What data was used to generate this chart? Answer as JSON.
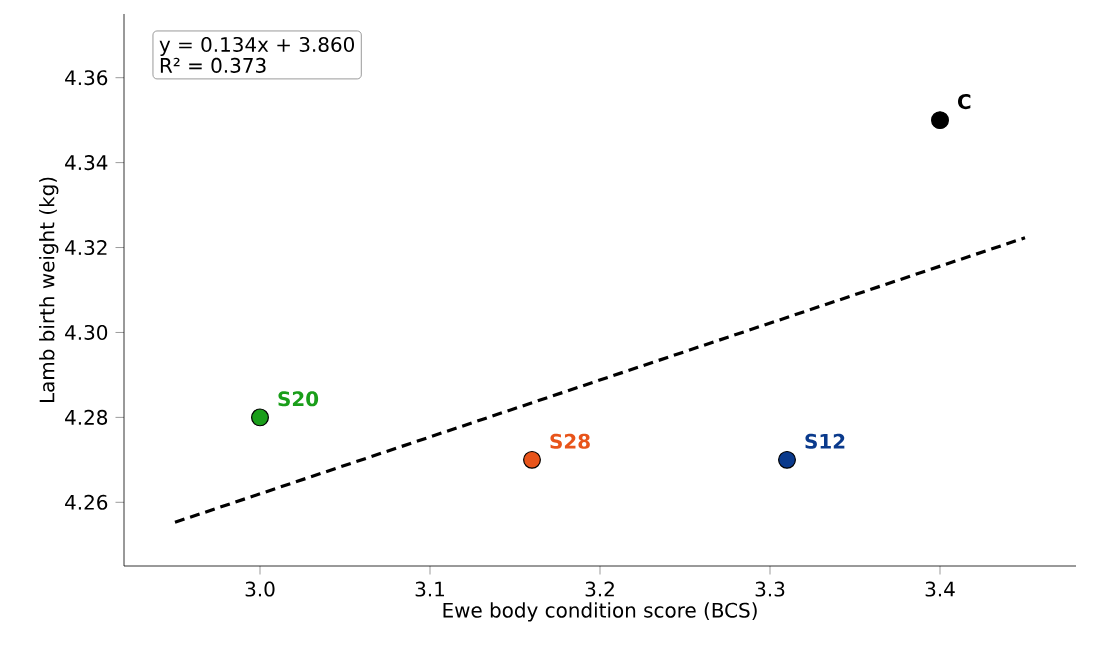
{
  "chart_data": {
    "type": "scatter",
    "xlabel": "Ewe body condition score (BCS)",
    "ylabel": "Lamb birth weight (kg)",
    "annotations": [
      "y = 0.134x + 3.860",
      "R² = 0.373"
    ],
    "xlim": [
      2.92,
      3.48
    ],
    "ylim": [
      4.245,
      4.375
    ],
    "xticks": [
      {
        "value": 3.0,
        "label": "3.0"
      },
      {
        "value": 3.1,
        "label": "3.1"
      },
      {
        "value": 3.2,
        "label": "3.2"
      },
      {
        "value": 3.3,
        "label": "3.3"
      },
      {
        "value": 3.4,
        "label": "3.4"
      }
    ],
    "yticks": [
      {
        "value": 4.26,
        "label": "4.26"
      },
      {
        "value": 4.28,
        "label": "4.28"
      },
      {
        "value": 4.3,
        "label": "4.30"
      },
      {
        "value": 4.32,
        "label": "4.32"
      },
      {
        "value": 4.34,
        "label": "4.34"
      },
      {
        "value": 4.36,
        "label": "4.36"
      }
    ],
    "series": [
      {
        "name": "S20",
        "color": "#1a9e1a",
        "marker": "circle",
        "x": [
          3.0
        ],
        "values": [
          4.28
        ]
      },
      {
        "name": "S28",
        "color": "#e8541a",
        "marker": "circle",
        "x": [
          3.16
        ],
        "values": [
          4.27
        ]
      },
      {
        "name": "S12",
        "color": "#0a3a8c",
        "marker": "circle",
        "x": [
          3.31
        ],
        "values": [
          4.27
        ]
      },
      {
        "name": "C",
        "color": "#000000",
        "marker": "circle",
        "x": [
          3.4
        ],
        "values": [
          4.35
        ]
      },
      {
        "type": "line",
        "color": "#000000",
        "line_style": "dashed",
        "marker": "none",
        "x": [
          2.95,
          3.45
        ],
        "values": [
          4.2553,
          4.3223
        ]
      }
    ]
  }
}
